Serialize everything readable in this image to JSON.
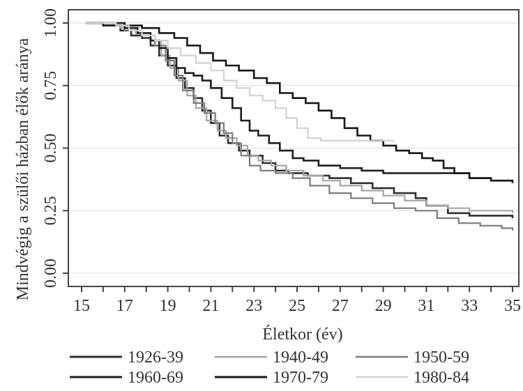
{
  "chart_data": {
    "type": "line",
    "xlabel": "Életkor (év)",
    "ylabel": "Mindvégig a szülői házban élők aránya",
    "xlim": [
      15,
      35
    ],
    "ylim": [
      0,
      1
    ],
    "x_ticks": [
      15,
      17,
      19,
      21,
      23,
      25,
      27,
      29,
      31,
      33,
      35
    ],
    "y_ticks": [
      "0.00",
      "0.25",
      "0.50",
      "0.75",
      "1.00"
    ],
    "y_tick_values": [
      0,
      0.25,
      0.5,
      0.75,
      1
    ],
    "grid": true,
    "legend_position": "bottom",
    "series": [
      {
        "name": "1926-39",
        "color": "#2e2e2e",
        "width": 2.6,
        "points": [
          [
            15.2,
            1.0
          ],
          [
            16,
            0.99
          ],
          [
            16.8,
            0.97
          ],
          [
            17.3,
            0.95
          ],
          [
            17.8,
            0.94
          ],
          [
            18.2,
            0.91
          ],
          [
            18.6,
            0.87
          ],
          [
            19,
            0.83
          ],
          [
            19.4,
            0.78
          ],
          [
            19.8,
            0.74
          ],
          [
            20.2,
            0.7
          ],
          [
            20.6,
            0.65
          ],
          [
            21,
            0.6
          ],
          [
            21.4,
            0.55
          ],
          [
            21.8,
            0.52
          ],
          [
            22.3,
            0.49
          ],
          [
            22.8,
            0.47
          ],
          [
            23.4,
            0.44
          ],
          [
            24,
            0.41
          ],
          [
            24.6,
            0.4
          ],
          [
            25.5,
            0.39
          ],
          [
            26.5,
            0.38
          ],
          [
            27.5,
            0.36
          ],
          [
            28.5,
            0.34
          ],
          [
            29.5,
            0.32
          ],
          [
            30.5,
            0.3
          ],
          [
            31,
            0.27
          ],
          [
            32,
            0.24
          ],
          [
            33,
            0.23
          ],
          [
            35,
            0.22
          ]
        ]
      },
      {
        "name": "1940-49",
        "color": "#a6a6a6",
        "width": 2.2,
        "points": [
          [
            15.2,
            1.0
          ],
          [
            16,
            0.99
          ],
          [
            16.8,
            0.98
          ],
          [
            17.5,
            0.96
          ],
          [
            18.2,
            0.93
          ],
          [
            18.7,
            0.87
          ],
          [
            19.1,
            0.82
          ],
          [
            19.5,
            0.77
          ],
          [
            19.9,
            0.71
          ],
          [
            20.3,
            0.66
          ],
          [
            20.8,
            0.61
          ],
          [
            21.3,
            0.57
          ],
          [
            21.7,
            0.54
          ],
          [
            22.2,
            0.51
          ],
          [
            22.7,
            0.47
          ],
          [
            23.2,
            0.45
          ],
          [
            23.8,
            0.43
          ],
          [
            24.5,
            0.41
          ],
          [
            25.3,
            0.39
          ],
          [
            26.2,
            0.37
          ],
          [
            27,
            0.35
          ],
          [
            28,
            0.33
          ],
          [
            29,
            0.31
          ],
          [
            30,
            0.29
          ],
          [
            31,
            0.27
          ],
          [
            32,
            0.26
          ],
          [
            33,
            0.25
          ],
          [
            35,
            0.24
          ]
        ]
      },
      {
        "name": "1950-59",
        "color": "#7b7b7b",
        "width": 2.2,
        "points": [
          [
            15.2,
            1.0
          ],
          [
            16,
            0.99
          ],
          [
            17,
            0.97
          ],
          [
            17.8,
            0.95
          ],
          [
            18.4,
            0.91
          ],
          [
            18.9,
            0.85
          ],
          [
            19.3,
            0.79
          ],
          [
            19.7,
            0.73
          ],
          [
            20.2,
            0.68
          ],
          [
            20.7,
            0.64
          ],
          [
            21.2,
            0.6
          ],
          [
            21.6,
            0.56
          ],
          [
            22,
            0.52
          ],
          [
            22.4,
            0.47
          ],
          [
            22.8,
            0.43
          ],
          [
            23.3,
            0.41
          ],
          [
            24,
            0.4
          ],
          [
            24.8,
            0.38
          ],
          [
            25.6,
            0.35
          ],
          [
            26.5,
            0.32
          ],
          [
            27.5,
            0.3
          ],
          [
            28.5,
            0.28
          ],
          [
            29.5,
            0.26
          ],
          [
            30.5,
            0.25
          ],
          [
            31.5,
            0.22
          ],
          [
            32.5,
            0.2
          ],
          [
            33.5,
            0.19
          ],
          [
            34.5,
            0.18
          ],
          [
            35,
            0.17
          ]
        ]
      },
      {
        "name": "1960-69",
        "color": "#1e1e1e",
        "width": 2.6,
        "points": [
          [
            15.2,
            1.0
          ],
          [
            16,
            0.99
          ],
          [
            17,
            0.98
          ],
          [
            17.6,
            0.96
          ],
          [
            18.2,
            0.93
          ],
          [
            18.6,
            0.9
          ],
          [
            19,
            0.86
          ],
          [
            19.4,
            0.82
          ],
          [
            19.8,
            0.8
          ],
          [
            20.2,
            0.79
          ],
          [
            20.6,
            0.77
          ],
          [
            21,
            0.74
          ],
          [
            21.5,
            0.7
          ],
          [
            22,
            0.66
          ],
          [
            22.4,
            0.61
          ],
          [
            22.8,
            0.57
          ],
          [
            23.2,
            0.55
          ],
          [
            23.7,
            0.52
          ],
          [
            24.2,
            0.49
          ],
          [
            24.8,
            0.46
          ],
          [
            25.3,
            0.45
          ],
          [
            26,
            0.43
          ],
          [
            27,
            0.42
          ],
          [
            28,
            0.41
          ],
          [
            29,
            0.4
          ],
          [
            30,
            0.4
          ],
          [
            31,
            0.4
          ],
          [
            32,
            0.4
          ],
          [
            33,
            0.38
          ],
          [
            34,
            0.37
          ],
          [
            35,
            0.37
          ]
        ]
      },
      {
        "name": "1970-79",
        "color": "#161616",
        "width": 2.6,
        "points": [
          [
            15.2,
            1.0
          ],
          [
            16,
            1.0
          ],
          [
            17,
            0.99
          ],
          [
            17.8,
            0.98
          ],
          [
            18.6,
            0.96
          ],
          [
            19.3,
            0.94
          ],
          [
            19.9,
            0.91
          ],
          [
            20.5,
            0.88
          ],
          [
            21.1,
            0.85
          ],
          [
            21.7,
            0.83
          ],
          [
            22.3,
            0.81
          ],
          [
            23,
            0.78
          ],
          [
            23.6,
            0.76
          ],
          [
            24.2,
            0.72
          ],
          [
            24.8,
            0.7
          ],
          [
            25.4,
            0.68
          ],
          [
            26,
            0.65
          ],
          [
            26.6,
            0.62
          ],
          [
            27.2,
            0.58
          ],
          [
            27.8,
            0.55
          ],
          [
            28.4,
            0.53
          ],
          [
            29,
            0.51
          ],
          [
            29.6,
            0.49
          ],
          [
            30.2,
            0.48
          ],
          [
            30.8,
            0.46
          ],
          [
            31.3,
            0.45
          ],
          [
            31.8,
            0.42
          ],
          [
            32.3,
            0.4
          ],
          [
            33,
            0.38
          ],
          [
            34,
            0.37
          ],
          [
            35,
            0.36
          ]
        ]
      },
      {
        "name": "1980-84",
        "color": "#d2d2d2",
        "width": 2.2,
        "points": [
          [
            15.2,
            1.0
          ],
          [
            16,
            1.0
          ],
          [
            16.6,
            0.99
          ],
          [
            17.2,
            0.97
          ],
          [
            17.8,
            0.95
          ],
          [
            18.4,
            0.93
          ],
          [
            19,
            0.9
          ],
          [
            19.6,
            0.87
          ],
          [
            20.3,
            0.84
          ],
          [
            21,
            0.81
          ],
          [
            21.6,
            0.77
          ],
          [
            22.2,
            0.74
          ],
          [
            22.8,
            0.71
          ],
          [
            23.4,
            0.69
          ],
          [
            24,
            0.66
          ],
          [
            24.5,
            0.62
          ],
          [
            25,
            0.58
          ],
          [
            25.5,
            0.54
          ],
          [
            26.1,
            0.53
          ],
          [
            26.8,
            0.53
          ],
          [
            28,
            0.53
          ],
          [
            29.5,
            0.53
          ]
        ]
      }
    ]
  }
}
